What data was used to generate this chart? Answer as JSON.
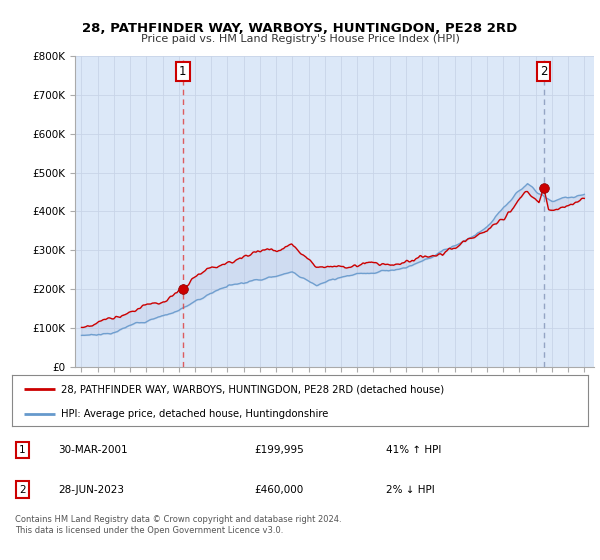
{
  "title": "28, PATHFINDER WAY, WARBOYS, HUNTINGDON, PE28 2RD",
  "subtitle": "Price paid vs. HM Land Registry's House Price Index (HPI)",
  "ylim": [
    0,
    800000
  ],
  "yticks": [
    0,
    100000,
    200000,
    300000,
    400000,
    500000,
    600000,
    700000,
    800000
  ],
  "ytick_labels": [
    "£0",
    "£100K",
    "£200K",
    "£300K",
    "£400K",
    "£500K",
    "£600K",
    "£700K",
    "£800K"
  ],
  "background_color": "#ffffff",
  "grid_color": "#c8d4e8",
  "plot_bg_color": "#dce8f8",
  "price_paid_color": "#cc0000",
  "hpi_color": "#6699cc",
  "vline1_color": "#dd4444",
  "vline2_color": "#8899bb",
  "legend_line1": "28, PATHFINDER WAY, WARBOYS, HUNTINGDON, PE28 2RD (detached house)",
  "legend_line2": "HPI: Average price, detached house, Huntingdonshire",
  "table_row1": [
    "1",
    "30-MAR-2001",
    "£199,995",
    "41% ↑ HPI"
  ],
  "table_row2": [
    "2",
    "28-JUN-2023",
    "£460,000",
    "2% ↓ HPI"
  ],
  "footer1": "Contains HM Land Registry data © Crown copyright and database right 2024.",
  "footer2": "This data is licensed under the Open Government Licence v3.0.",
  "sale1_year": 2001.25,
  "sale1_price": 199995,
  "sale2_year": 2023.5,
  "sale2_price": 460000,
  "xmin": 1995,
  "xmax": 2026
}
